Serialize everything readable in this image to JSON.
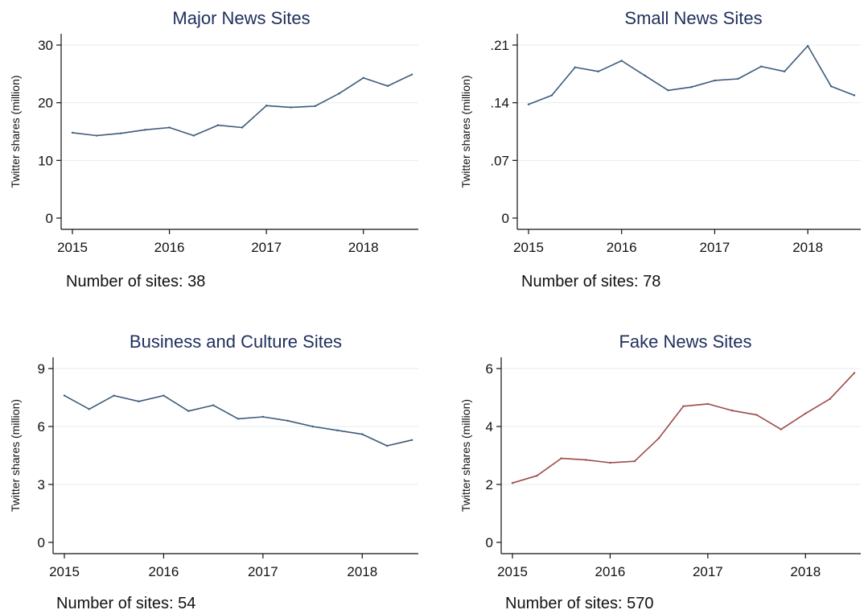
{
  "chart_data": [
    {
      "type": "line",
      "title": "Major News Sites",
      "ylabel": "Twitter shares (million)",
      "note": "Number of sites: 38",
      "color": "#3d5a7a",
      "x_ticks": [
        "2015",
        "2016",
        "2017",
        "2018"
      ],
      "y_ticks": [
        "0",
        "10",
        "20",
        "30"
      ],
      "y_tick_values": [
        0,
        10,
        20,
        30
      ],
      "ylim": [
        0,
        30
      ],
      "x": [
        2015.0,
        2015.25,
        2015.5,
        2015.75,
        2016.0,
        2016.25,
        2016.5,
        2016.75,
        2017.0,
        2017.25,
        2017.5,
        2017.75,
        2018.0,
        2018.25,
        2018.5
      ],
      "values": [
        14.8,
        14.3,
        14.7,
        15.3,
        15.7,
        14.3,
        16.1,
        15.7,
        19.5,
        19.2,
        19.4,
        21.6,
        24.3,
        22.9,
        24.9
      ]
    },
    {
      "type": "line",
      "title": "Small News Sites",
      "ylabel": "Twitter shares (million)",
      "note": "Number of sites: 78",
      "color": "#3d5a7a",
      "x_ticks": [
        "2015",
        "2016",
        "2017",
        "2018"
      ],
      "y_ticks": [
        "0",
        ".07",
        ".14",
        ".21"
      ],
      "y_tick_values": [
        0,
        0.07,
        0.14,
        0.21
      ],
      "ylim": [
        0,
        0.21
      ],
      "x": [
        2015.0,
        2015.25,
        2015.5,
        2015.75,
        2016.0,
        2016.25,
        2016.5,
        2016.75,
        2017.0,
        2017.25,
        2017.5,
        2017.75,
        2018.0,
        2018.25,
        2018.5
      ],
      "values": [
        0.138,
        0.149,
        0.183,
        0.178,
        0.191,
        0.173,
        0.155,
        0.159,
        0.167,
        0.169,
        0.184,
        0.178,
        0.209,
        0.16,
        0.149
      ]
    },
    {
      "type": "line",
      "title": "Business and Culture Sites",
      "ylabel": "Twitter shares (million)",
      "note": "Number of sites: 54",
      "color": "#3d5a7a",
      "x_ticks": [
        "2015",
        "2016",
        "2017",
        "2018"
      ],
      "y_ticks": [
        "0",
        "3",
        "6",
        "9"
      ],
      "y_tick_values": [
        0,
        3,
        6,
        9
      ],
      "ylim": [
        0,
        9
      ],
      "x": [
        2015.0,
        2015.25,
        2015.5,
        2015.75,
        2016.0,
        2016.25,
        2016.5,
        2016.75,
        2017.0,
        2017.25,
        2017.5,
        2017.75,
        2018.0,
        2018.25,
        2018.5
      ],
      "values": [
        7.6,
        6.9,
        7.6,
        7.3,
        7.6,
        6.8,
        7.1,
        6.4,
        6.5,
        6.3,
        6.0,
        5.8,
        5.6,
        5.0,
        5.3
      ]
    },
    {
      "type": "line",
      "title": "Fake News Sites",
      "ylabel": "Twitter shares (million)",
      "note": "Number of sites: 570",
      "color": "#9e4a4a",
      "x_ticks": [
        "2015",
        "2016",
        "2017",
        "2018"
      ],
      "y_ticks": [
        "0",
        "2",
        "4",
        "6"
      ],
      "y_tick_values": [
        0,
        2,
        4,
        6
      ],
      "ylim": [
        0,
        6
      ],
      "x": [
        2015.0,
        2015.25,
        2015.5,
        2015.75,
        2016.0,
        2016.25,
        2016.5,
        2016.75,
        2017.0,
        2017.25,
        2017.5,
        2017.75,
        2018.0,
        2018.25,
        2018.5
      ],
      "values": [
        2.05,
        2.3,
        2.9,
        2.85,
        2.75,
        2.8,
        3.6,
        4.7,
        4.78,
        4.55,
        4.4,
        3.9,
        4.45,
        4.95,
        5.85
      ]
    }
  ]
}
